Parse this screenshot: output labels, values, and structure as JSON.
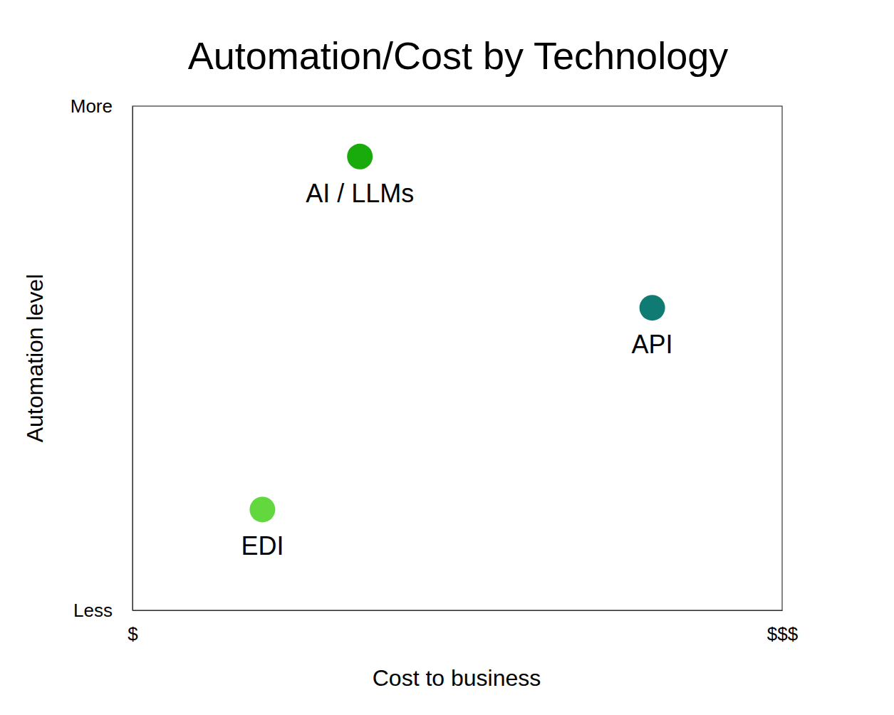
{
  "chart_data": {
    "type": "scatter",
    "title": "Automation/Cost by Technology",
    "x_label": "Cost to business",
    "y_label": "Automation level",
    "labels": [
      "AI / LLMs",
      "API",
      "EDI"
    ],
    "x": [
      3.5,
      8,
      2
    ],
    "values": [
      9,
      6,
      2
    ],
    "colors": [
      "#19aa0c",
      "#0f7b73",
      "#62d83e"
    ],
    "xlim": [
      0,
      10
    ],
    "ylim": [
      0,
      10
    ],
    "xticks": [
      {
        "value": 0,
        "label": "$"
      },
      {
        "value": 10,
        "label": "$$$"
      }
    ],
    "yticks": [
      {
        "value": 0,
        "label": "Less"
      },
      {
        "value": 10,
        "label": "More"
      }
    ],
    "grid": false
  }
}
